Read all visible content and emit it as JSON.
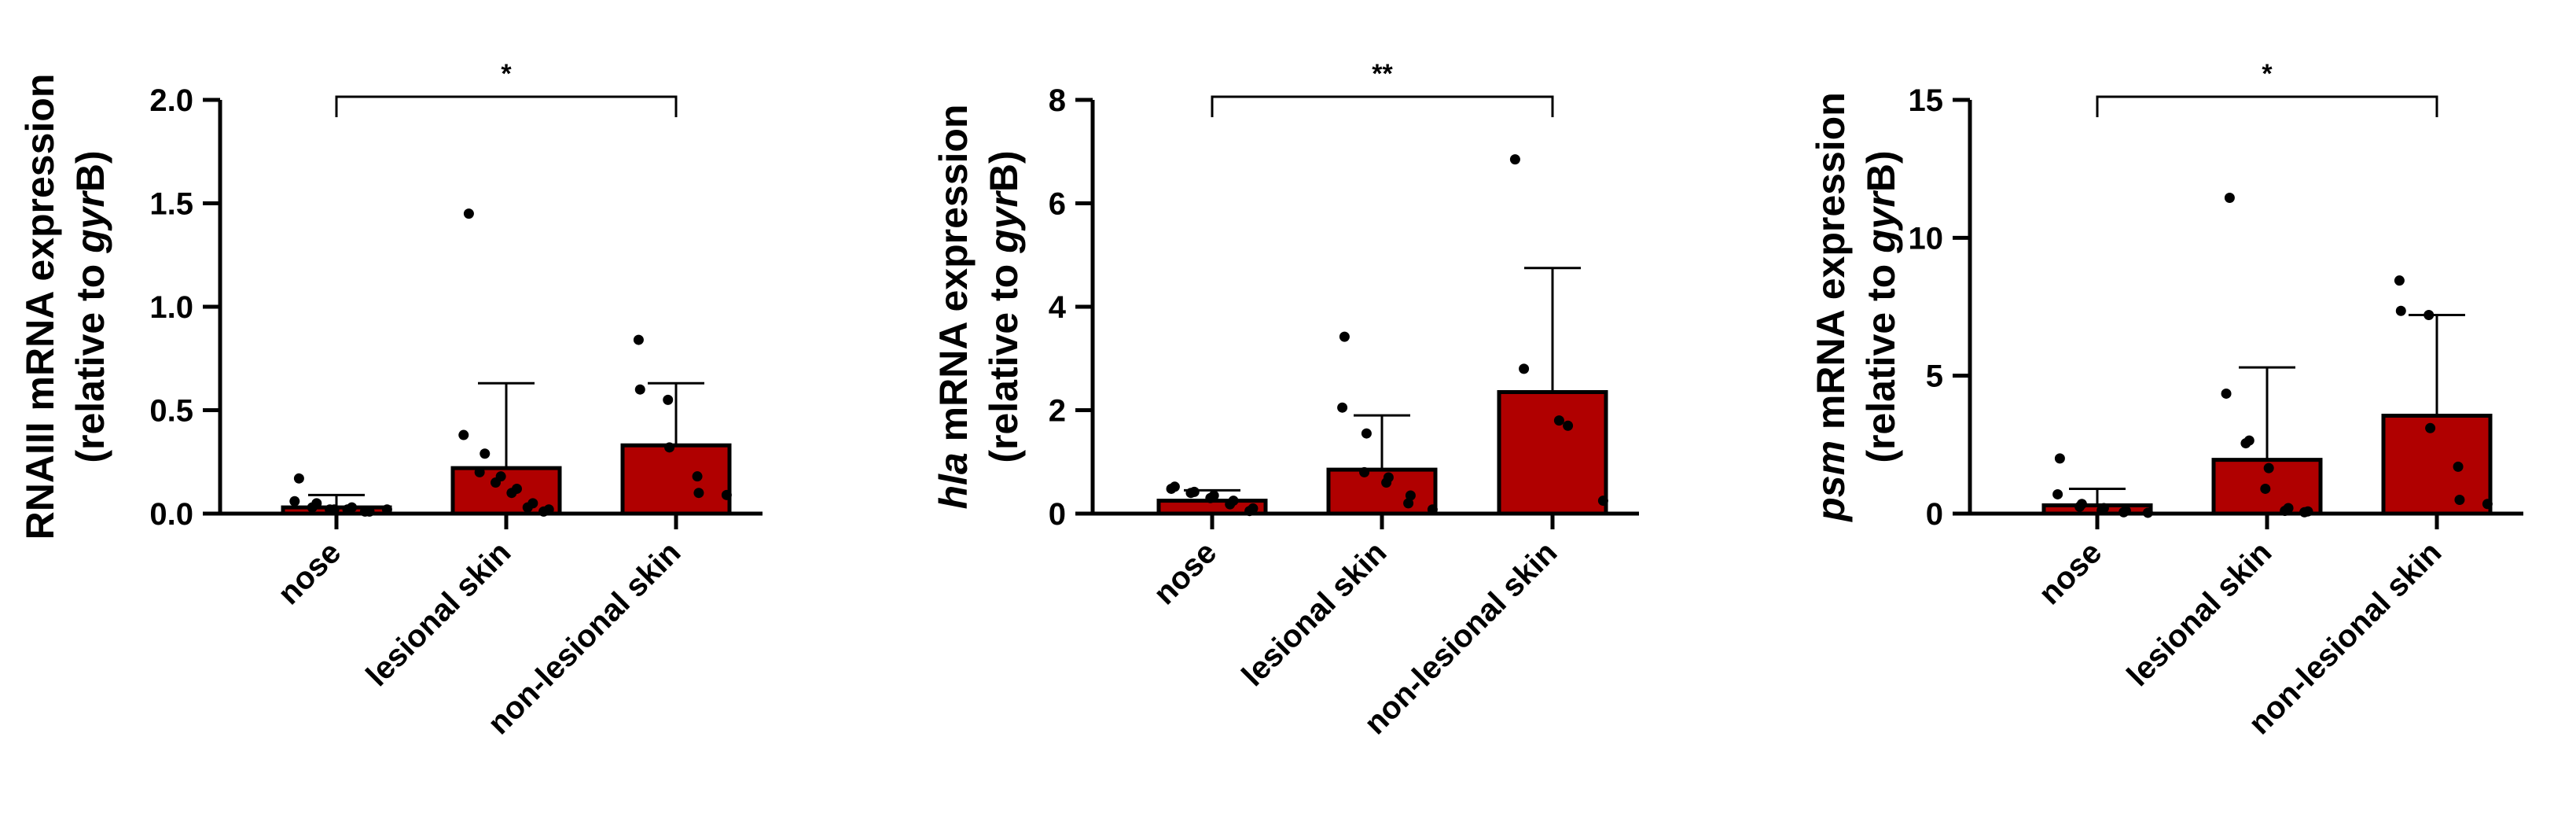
{
  "figure": {
    "colors": {
      "bar": "#b00000",
      "outline": "#000000",
      "dot": "#000000"
    }
  },
  "chart_data": [
    {
      "type": "bar",
      "title": "",
      "ylabel_parts": [
        {
          "text": "RNAIII mRNA expression",
          "italic": false
        }
      ],
      "ylabel_line2_parts": [
        {
          "text": "(relative to ",
          "italic": false
        },
        {
          "text": "gyr",
          "italic": true
        },
        {
          "text": "B)",
          "italic": false
        }
      ],
      "xlabel": "",
      "categories": [
        "nose",
        "lesional skin",
        "non-lesional skin"
      ],
      "ylim": [
        0,
        2.0
      ],
      "yticks": [
        "0.0",
        "0.5",
        "1.0",
        "1.5",
        "2.0"
      ],
      "ytick_values": [
        0,
        0.5,
        1.0,
        1.5,
        2.0
      ],
      "values": [
        0.03,
        0.22,
        0.33
      ],
      "error_upper": [
        0.09,
        0.63,
        0.63
      ],
      "points": [
        [
          0.17,
          0.06,
          0.05,
          0.03,
          0.02,
          0.02,
          0.03,
          0.02,
          0.01,
          0.01,
          0.02
        ],
        [
          1.45,
          0.38,
          0.29,
          0.2,
          0.18,
          0.15,
          0.12,
          0.1,
          0.05,
          0.03,
          0.02,
          0.01
        ],
        [
          0.84,
          0.6,
          0.55,
          0.32,
          0.18,
          0.1,
          0.09
        ]
      ],
      "significance": {
        "from": 0,
        "to": 2,
        "label": "*",
        "y": 2.0
      }
    },
    {
      "type": "bar",
      "title": "",
      "ylabel_parts": [
        {
          "text": "hla",
          "italic": true
        },
        {
          "text": " mRNA expression",
          "italic": false
        }
      ],
      "ylabel_line2_parts": [
        {
          "text": "(relative to ",
          "italic": false
        },
        {
          "text": "gyr",
          "italic": true
        },
        {
          "text": "B)",
          "italic": false
        }
      ],
      "xlabel": "",
      "categories": [
        "nose",
        "lesional skin",
        "non-lesional skin"
      ],
      "ylim": [
        0,
        8
      ],
      "yticks": [
        "0",
        "2",
        "4",
        "6",
        "8"
      ],
      "ytick_values": [
        0,
        2,
        4,
        6,
        8
      ],
      "values": [
        0.25,
        0.85,
        2.35
      ],
      "error_upper": [
        0.45,
        1.9,
        4.75
      ],
      "points": [
        [
          0.52,
          0.48,
          0.42,
          0.4,
          0.35,
          0.3,
          0.25,
          0.18,
          0.1,
          0.05
        ],
        [
          3.42,
          2.05,
          1.55,
          0.8,
          0.7,
          0.6,
          0.35,
          0.2,
          0.08
        ],
        [
          6.85,
          2.8,
          1.8,
          1.7,
          0.25
        ]
      ],
      "significance": {
        "from": 0,
        "to": 2,
        "label": "**",
        "y": 8.0
      }
    },
    {
      "type": "bar",
      "title": "",
      "ylabel_parts": [
        {
          "text": "psm",
          "italic": true
        },
        {
          "text": " mRNA expression",
          "italic": false
        }
      ],
      "ylabel_line2_parts": [
        {
          "text": "(relative to ",
          "italic": false
        },
        {
          "text": "gyr",
          "italic": true
        },
        {
          "text": "B)",
          "italic": false
        }
      ],
      "xlabel": "",
      "categories": [
        "nose",
        "lesional skin",
        "non-lesional skin"
      ],
      "ylim": [
        0,
        15
      ],
      "yticks": [
        "0",
        "5",
        "10",
        "15"
      ],
      "ytick_values": [
        0,
        5,
        10,
        15
      ],
      "values": [
        0.3,
        1.95,
        3.55
      ],
      "error_upper": [
        0.9,
        5.3,
        7.2
      ],
      "points": [
        [
          2.0,
          0.7,
          0.35,
          0.25,
          0.2,
          0.12,
          0.1,
          0.05,
          0.03
        ],
        [
          11.45,
          4.35,
          2.65,
          2.55,
          1.65,
          0.9,
          0.2,
          0.1,
          0.08,
          0.05
        ],
        [
          8.45,
          7.35,
          7.2,
          3.1,
          1.7,
          0.5,
          0.35
        ]
      ],
      "significance": {
        "from": 0,
        "to": 2,
        "label": "*",
        "y": 15.0
      }
    }
  ]
}
